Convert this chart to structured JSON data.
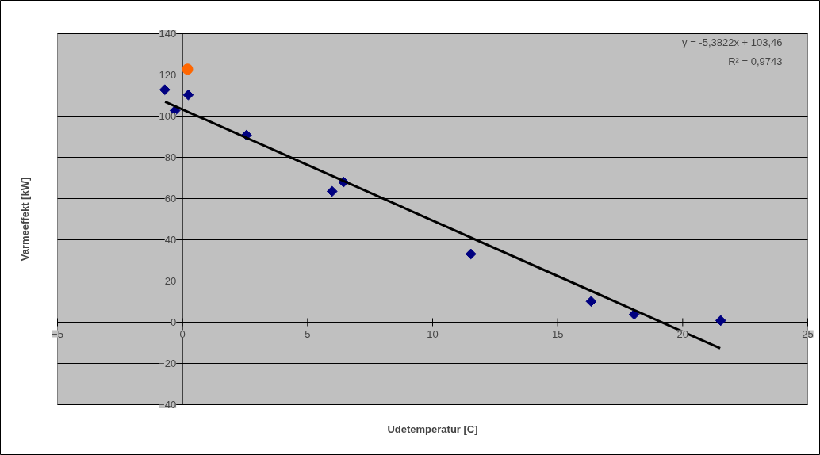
{
  "chart_data": {
    "type": "scatter",
    "xlabel": "Udetemperatur [C]",
    "ylabel": "Varmeeffekt [kW]",
    "annotations": [
      "y = -5,3822x + 103,46",
      "R² = 0,9743"
    ],
    "series": [
      {
        "type": "scatter",
        "marker": "diamond",
        "color": "#000080",
        "x": [
          -0.71,
          -0.3,
          0.23,
          2.56,
          5.98,
          6.44,
          11.53,
          16.34,
          18.06,
          21.52
        ],
        "values": [
          112.8,
          102.7,
          110.3,
          90.8,
          63.5,
          68.0,
          33.1,
          10.1,
          3.8,
          0.8
        ]
      },
      {
        "type": "scatter",
        "marker": "circle",
        "color": "#ff6600",
        "x": [
          0.2
        ],
        "values": [
          122.8
        ]
      },
      {
        "type": "line",
        "color": "#000000",
        "x": [
          -0.7,
          21.5
        ],
        "values": [
          107.0,
          -12.6
        ]
      }
    ],
    "xlim": [
      -5,
      25
    ],
    "ylim": [
      -40,
      140
    ],
    "xticks": [
      -5,
      0,
      5,
      10,
      15,
      20,
      25
    ],
    "yticks": [
      -40,
      -20,
      0,
      20,
      40,
      60,
      80,
      100,
      120,
      140
    ],
    "grid": "y"
  }
}
